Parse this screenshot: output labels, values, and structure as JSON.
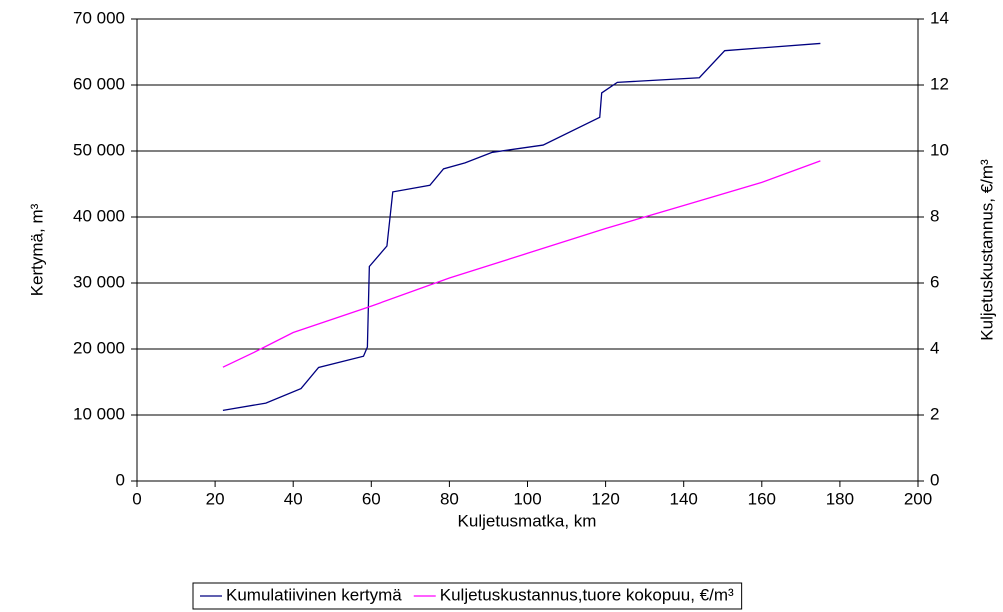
{
  "chart_data": {
    "type": "line",
    "x_label": "Kuljetusmatka, km",
    "y_label": "Kertymä, m³",
    "y2_label": "Kuljetuskustannus, €/m³",
    "xlim": [
      0,
      200
    ],
    "xticks": [
      0,
      20,
      40,
      60,
      80,
      100,
      120,
      140,
      160,
      180,
      200
    ],
    "ylim": [
      0,
      70000
    ],
    "yticks": [
      0,
      {
        "value": 10000,
        "label": "10 000"
      },
      {
        "value": 20000,
        "label": "20 000"
      },
      {
        "value": 30000,
        "label": "30 000"
      },
      {
        "value": 40000,
        "label": "40 000"
      },
      {
        "value": 50000,
        "label": "50 000"
      },
      {
        "value": 60000,
        "label": "60 000"
      },
      {
        "value": 70000,
        "label": "70 000"
      }
    ],
    "y2lim": [
      0,
      14
    ],
    "y2ticks": [
      0,
      2,
      4,
      6,
      8,
      10,
      12,
      14
    ],
    "grid": true,
    "legend": "bottom",
    "series": [
      {
        "name": "Kumulatiivinen kertymä",
        "color": "#000080",
        "x": [
          22,
          33,
          42,
          46.5,
          58,
          59,
          59.5,
          64,
          65.5,
          75,
          78.5,
          84,
          91,
          104,
          118.5,
          119,
          123,
          144,
          150.5,
          175
        ],
        "values": [
          10700,
          11800,
          14000,
          17200,
          18900,
          20300,
          32500,
          35600,
          43800,
          44800,
          47300,
          48200,
          49800,
          50900,
          55100,
          58800,
          60400,
          61100,
          65200,
          66300
        ]
      },
      {
        "name": "Kuljetuskustannus,tuore kokopuu, €/m³",
        "color": "#ff00ff",
        "axis": "y2",
        "x": [
          22,
          30,
          40,
          60,
          80,
          100,
          120,
          140,
          160,
          175
        ],
        "values": [
          3.45,
          3.9,
          4.5,
          5.3,
          6.15,
          6.9,
          7.65,
          8.35,
          9.05,
          9.7
        ]
      }
    ]
  }
}
